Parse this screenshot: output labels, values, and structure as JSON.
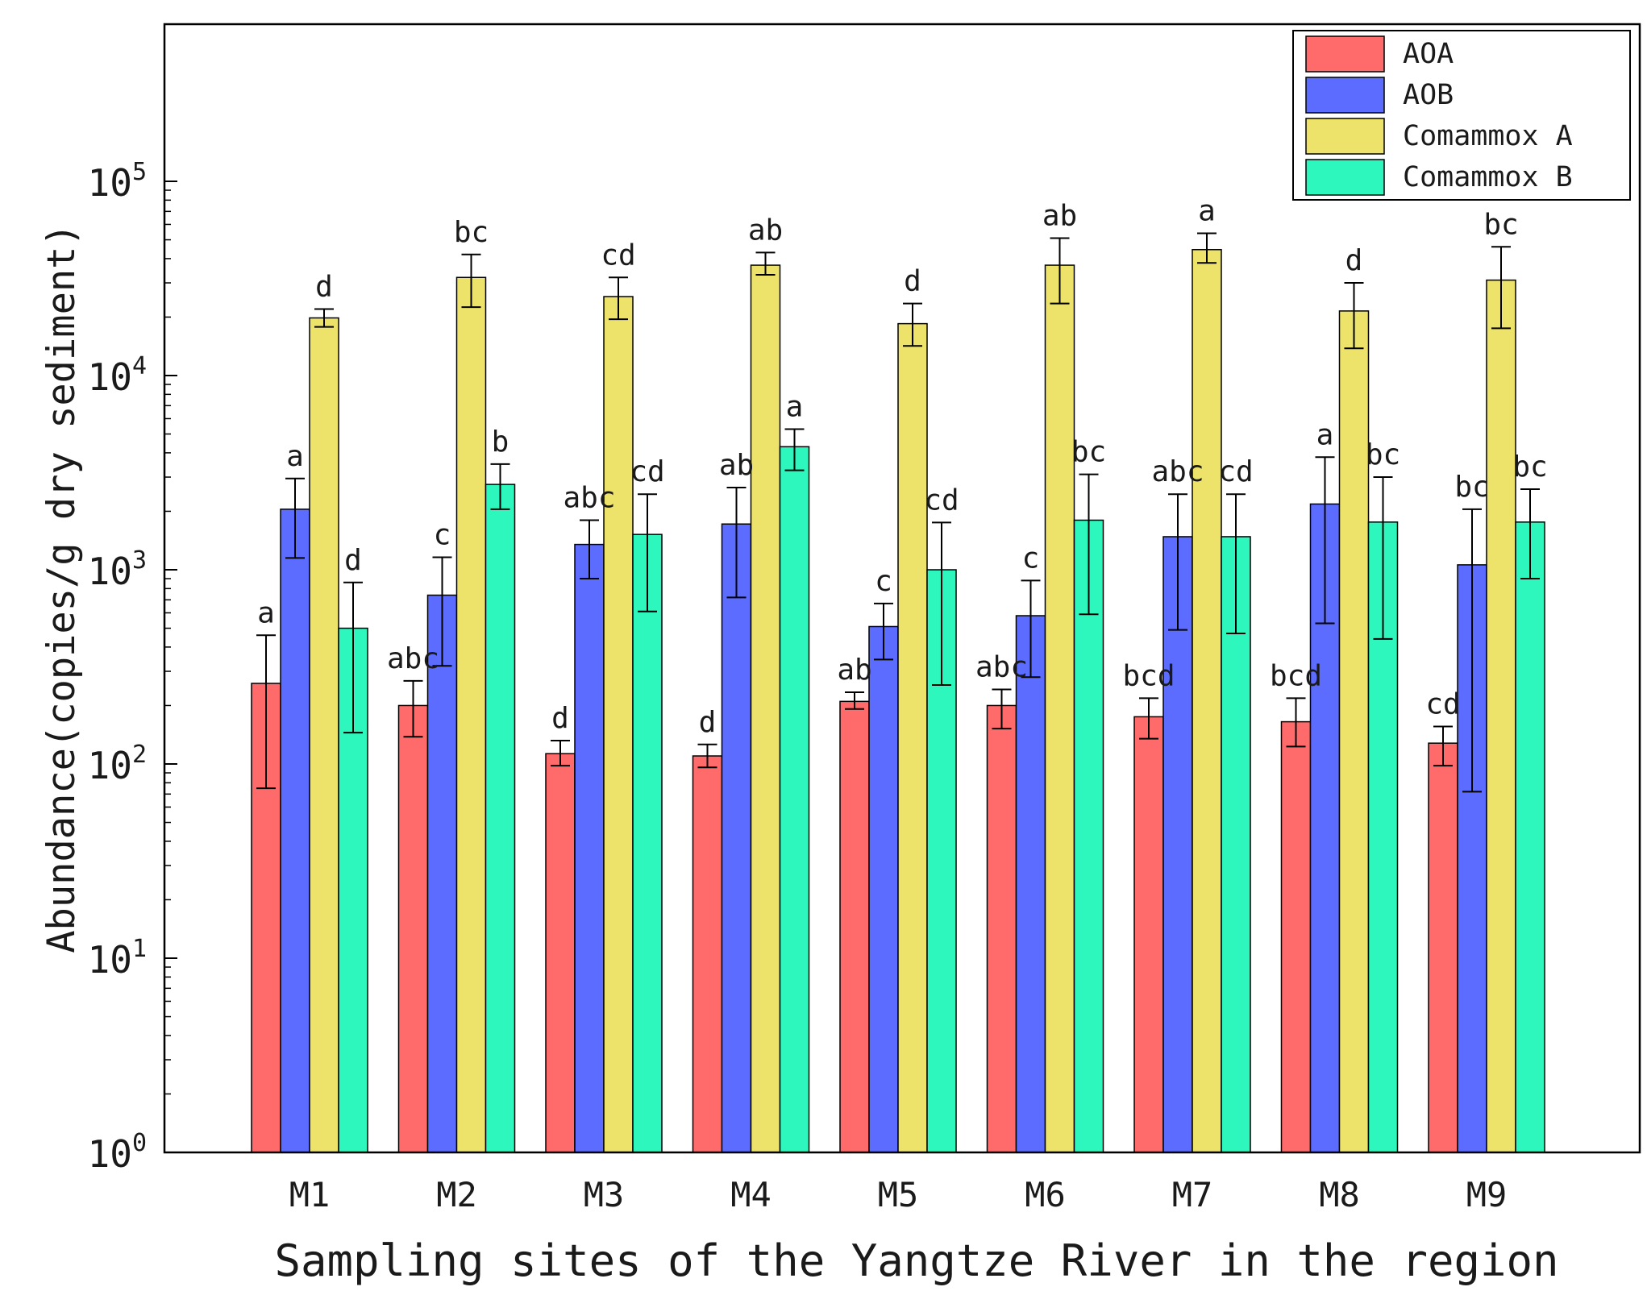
{
  "chart_data": {
    "type": "bar",
    "ylabel": "Abundance(copies/g dry sediment)",
    "xlabel": "Sampling sites of the Yangtze River in the region",
    "yscale": "log",
    "ylim": [
      1,
      1000000
    ],
    "yticks": [
      {
        "value": 1,
        "base": "10",
        "exp": "0"
      },
      {
        "value": 10,
        "base": "10",
        "exp": "1"
      },
      {
        "value": 100,
        "base": "10",
        "exp": "2"
      },
      {
        "value": 1000,
        "base": "10",
        "exp": "3"
      },
      {
        "value": 10000,
        "base": "10",
        "exp": "4"
      },
      {
        "value": 100000,
        "base": "10",
        "exp": "5"
      }
    ],
    "legend_position": "top-right",
    "categories": [
      "M1",
      "M2",
      "M3",
      "M4",
      "M5",
      "M6",
      "M7",
      "M8",
      "M9"
    ],
    "series": [
      {
        "name": "AOA",
        "color": "#ff6b6b",
        "values": [
          260,
          200,
          113,
          110,
          210,
          200,
          175,
          165,
          128
        ],
        "err_low": [
          75,
          138,
          98,
          96,
          192,
          152,
          135,
          123,
          98
        ],
        "err_high": [
          460,
          268,
          132,
          126,
          234,
          242,
          218,
          218,
          156
        ],
        "letters": [
          "a",
          "abc",
          "d",
          "d",
          "ab",
          "abc",
          "bcd",
          "bcd",
          "cd"
        ]
      },
      {
        "name": "AOB",
        "color": "#5b6cff",
        "values": [
          2050,
          740,
          1350,
          1720,
          510,
          580,
          1480,
          2180,
          1060
        ],
        "err_low": [
          1150,
          320,
          900,
          720,
          345,
          280,
          490,
          530,
          72
        ],
        "err_high": [
          2950,
          1160,
          1800,
          2650,
          670,
          880,
          2450,
          3800,
          2050
        ],
        "letters": [
          "a",
          "c",
          "abc",
          "ab",
          "c",
          "c",
          "abc",
          "a",
          "bc"
        ]
      },
      {
        "name": "Comammox A",
        "color": "#ede36a",
        "values": [
          19800,
          32000,
          25500,
          37000,
          18500,
          37000,
          44500,
          21500,
          31000
        ],
        "err_low": [
          17800,
          22500,
          19500,
          33000,
          14200,
          23500,
          38000,
          13800,
          17500
        ],
        "err_high": [
          22000,
          42000,
          32000,
          43000,
          23500,
          51000,
          54000,
          30000,
          46000
        ],
        "letters": [
          "d",
          "bc",
          "cd",
          "ab",
          "d",
          "ab",
          "a",
          "d",
          "bc"
        ]
      },
      {
        "name": "Comammox B",
        "color": "#2ef7be",
        "values": [
          500,
          2750,
          1520,
          4300,
          1000,
          1800,
          1480,
          1760,
          1760
        ],
        "err_low": [
          145,
          2050,
          610,
          3250,
          255,
          590,
          470,
          440,
          900
        ],
        "err_high": [
          860,
          3500,
          2450,
          5300,
          1750,
          3100,
          2450,
          3000,
          2600
        ],
        "letters": [
          "d",
          "b",
          "cd",
          "a",
          "cd",
          "bc",
          "cd",
          "bc",
          "bc"
        ]
      }
    ]
  }
}
